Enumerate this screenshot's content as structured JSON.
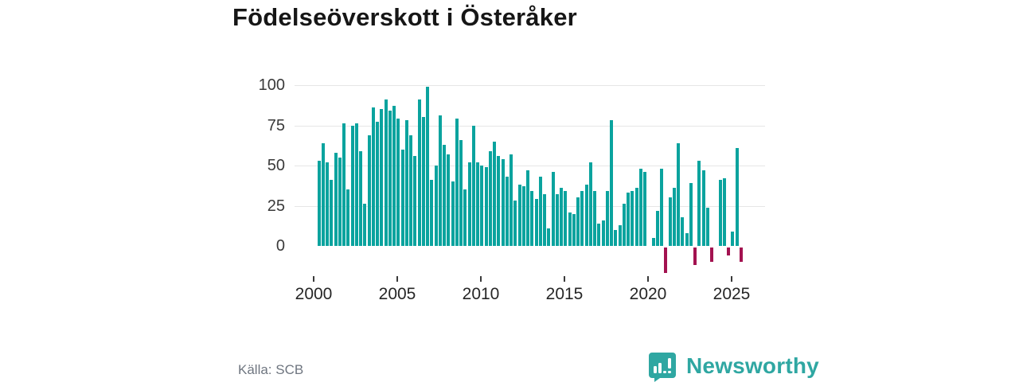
{
  "title": "Födelseöverskott i Österåker",
  "source": "Källa: SCB",
  "branding": {
    "wordmark": "Newsworthy",
    "logo_icon": "speech-bubble-bar-chart-icon",
    "accent_color": "#2fa7a2"
  },
  "chart_data": {
    "type": "bar",
    "title": "Födelseöverskott i Österåker",
    "x_start_period": "2000 Q1",
    "x_interval": "quarter",
    "values": [
      53,
      64,
      52,
      41,
      58,
      55,
      76,
      35,
      75,
      76,
      59,
      26,
      69,
      86,
      77,
      85,
      91,
      84,
      87,
      79,
      60,
      78,
      69,
      56,
      91,
      80,
      99,
      41,
      50,
      81,
      63,
      57,
      40,
      79,
      66,
      35,
      52,
      75,
      52,
      50,
      49,
      59,
      65,
      56,
      54,
      43,
      57,
      28,
      38,
      37,
      47,
      34,
      29,
      43,
      32,
      11,
      46,
      32,
      36,
      34,
      21,
      20,
      30,
      34,
      38,
      52,
      34,
      14,
      16,
      34,
      78,
      10,
      13,
      26,
      33,
      34,
      36,
      48,
      46,
      0,
      5,
      22,
      48,
      -16,
      30,
      36,
      64,
      18,
      8,
      39,
      -11,
      53,
      47,
      24,
      -9,
      0,
      41,
      42,
      -5,
      9,
      61,
      -9
    ],
    "x_tick_labels": [
      "2000",
      "2005",
      "2010",
      "2015",
      "2020",
      "2025"
    ],
    "x_tick_years": [
      2000,
      2005,
      2010,
      2015,
      2020,
      2025
    ],
    "y_ticks": [
      0,
      25,
      50,
      75,
      100
    ],
    "ylim": [
      -20,
      100
    ],
    "grid": true,
    "legend": false,
    "positive_color": "#0aa39e",
    "negative_color": "#a31250"
  }
}
